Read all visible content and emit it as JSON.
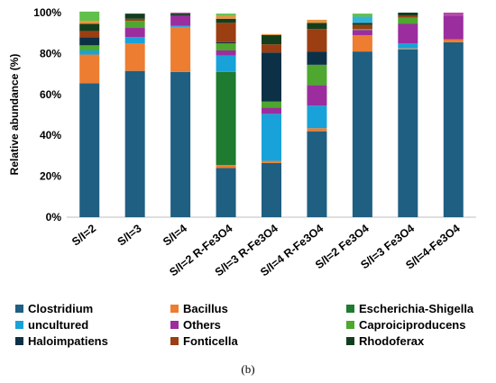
{
  "chart_data": {
    "type": "bar",
    "stacked": true,
    "ylabel": "Relative abundance (%)",
    "ylim": [
      0,
      100
    ],
    "yticks": [
      "0%",
      "20%",
      "40%",
      "60%",
      "80%",
      "100%"
    ],
    "categories": [
      "S/I=2",
      "S/I=3",
      "S/I=4",
      "S/I=2 R-Fe3O4",
      "S/I=3 R-Fe3O4",
      "S/I=4 R-Fe3O4",
      "S/I=2 Fe3O4",
      "S/I=3 Fe3O4",
      "S/I=4-Fe3O4"
    ],
    "legend_position": "bottom",
    "caption": "(b)",
    "series": [
      {
        "name": "Clostridium",
        "color": "#1f5f82",
        "values": [
          65.5,
          71.5,
          71,
          24,
          26.5,
          42,
          81,
          82,
          85.5
        ]
      },
      {
        "name": "Bacillus",
        "color": "#ed7d31",
        "values": [
          14,
          13.5,
          22,
          1.5,
          1,
          1.5,
          8,
          0.5,
          1.5
        ]
      },
      {
        "name": "Escherichia-Shigella",
        "color": "#1e7b2f",
        "values": [
          0,
          0,
          0,
          45.5,
          0,
          0,
          0,
          0,
          0
        ]
      },
      {
        "name": "uncultured",
        "color": "#18a2d9",
        "values": [
          2,
          3,
          0.5,
          8,
          23,
          11,
          0,
          2.5,
          0
        ]
      },
      {
        "name": "Others",
        "color": "#9b2d9f",
        "values": [
          0,
          4.5,
          5,
          2.5,
          3,
          10,
          2.5,
          9.5,
          11.5
        ]
      },
      {
        "name": "Caproiciproducens",
        "color": "#4ea72e",
        "values": [
          2.5,
          3.5,
          0,
          3.5,
          3,
          10,
          0.5,
          3,
          0
        ]
      },
      {
        "name": "Haloimpatiens",
        "color": "#0c3147",
        "values": [
          4,
          0,
          0,
          0.5,
          24,
          6.5,
          0,
          0,
          0
        ]
      },
      {
        "name": "Fonticella",
        "color": "#9b3e12",
        "values": [
          3,
          1,
          0,
          9.5,
          4,
          11,
          2,
          1,
          0
        ]
      },
      {
        "name": "Rhodoferax",
        "color": "#133e1e",
        "values": [
          3.5,
          2.5,
          1,
          2,
          4.5,
          3,
          1,
          1.5,
          0
        ]
      },
      {
        "name": "",
        "color": "#e8943f",
        "values": [
          1.5,
          0,
          0,
          1.5,
          0.5,
          1.5,
          0,
          0,
          0
        ]
      },
      {
        "name": "",
        "color": "#33b1de",
        "values": [
          0,
          0,
          0,
          0,
          0,
          0,
          3,
          0,
          0
        ]
      },
      {
        "name": "",
        "color": "#5fc04a",
        "values": [
          4.5,
          0,
          0,
          1,
          0,
          0,
          1.5,
          0,
          0
        ]
      },
      {
        "name": "",
        "color": "#b54aa8",
        "values": [
          0,
          0,
          0.5,
          0,
          0,
          0,
          0,
          0,
          1.5
        ]
      }
    ]
  }
}
